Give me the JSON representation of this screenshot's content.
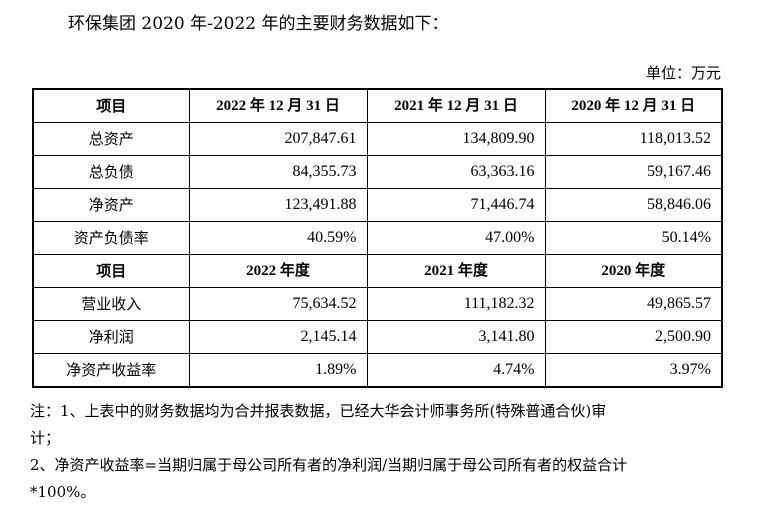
{
  "intro": "环保集团 2020 年-2022 年的主要财务数据如下：",
  "unit": "单位：万元",
  "balance_header": [
    "项目",
    "2022 年 12 月 31 日",
    "2021 年 12 月 31 日",
    "2020 年 12 月 31 日"
  ],
  "balance_rows": [
    [
      "总资产",
      "207,847.61",
      "134,809.90",
      "118,013.52"
    ],
    [
      "总负债",
      "84,355.73",
      "63,363.16",
      "59,167.46"
    ],
    [
      "净资产",
      "123,491.88",
      "71,446.74",
      "58,846.06"
    ],
    [
      "资产负债率",
      "40.59%",
      "47.00%",
      "50.14%"
    ]
  ],
  "income_header": [
    "项目",
    "2022 年度",
    "2021 年度",
    "2020 年度"
  ],
  "income_rows": [
    [
      "营业收入",
      "75,634.52",
      "111,182.32",
      "49,865.57"
    ],
    [
      "净利润",
      "2,145.14",
      "3,141.80",
      "2,500.90"
    ],
    [
      "净资产收益率",
      "1.89%",
      "4.74%",
      "3.97%"
    ]
  ],
  "notes": [
    "注：1、上表中的财务数据均为合并报表数据，已经大华会计师事务所(特殊普通合伙)审",
    "计；",
    "2、净资产收益率=当期归属于母公司所有者的净利润/当期归属于母公司所有者的权益合计",
    "*100%。"
  ]
}
